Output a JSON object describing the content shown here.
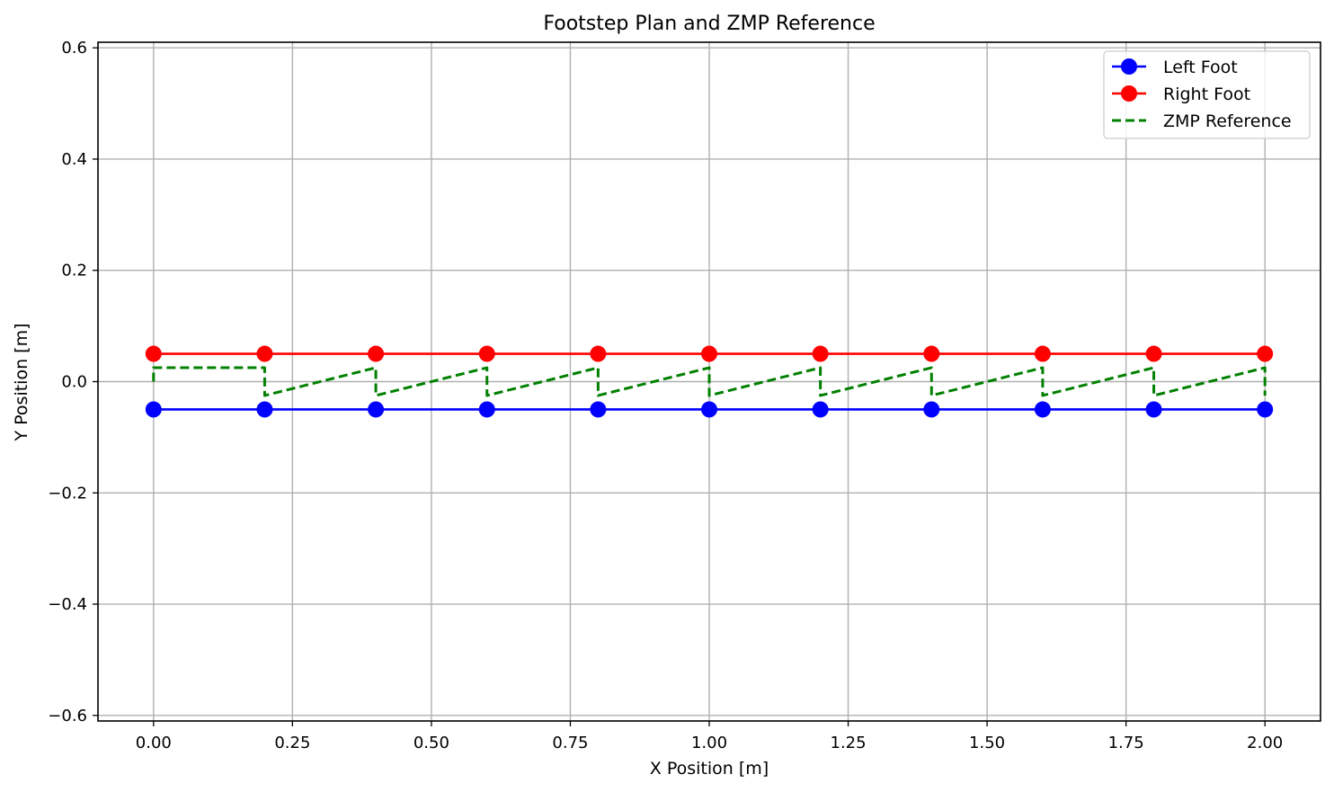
{
  "chart_data": {
    "type": "line",
    "title": "Footstep Plan and ZMP Reference",
    "xlabel": "X Position [m]",
    "ylabel": "Y Position [m]",
    "xlim": [
      -0.1,
      2.1
    ],
    "ylim": [
      -0.61,
      0.61
    ],
    "xticks": [
      0.0,
      0.25,
      0.5,
      0.75,
      1.0,
      1.25,
      1.5,
      1.75,
      2.0
    ],
    "xtick_labels": [
      "0.00",
      "0.25",
      "0.50",
      "0.75",
      "1.00",
      "1.25",
      "1.50",
      "1.75",
      "2.00"
    ],
    "yticks": [
      -0.6,
      -0.4,
      -0.2,
      0.0,
      0.2,
      0.4,
      0.6
    ],
    "ytick_labels": [
      "−0.6",
      "−0.4",
      "−0.2",
      "0.0",
      "0.2",
      "0.4",
      "0.6"
    ],
    "grid": true,
    "legend_position": "top-right",
    "series": [
      {
        "name": "Left Foot",
        "color": "#0000ff",
        "style": "solid-marker",
        "x": [
          0.0,
          0.2,
          0.4,
          0.6,
          0.8,
          1.0,
          1.2,
          1.4,
          1.6,
          1.8,
          2.0
        ],
        "y": [
          -0.05,
          -0.05,
          -0.05,
          -0.05,
          -0.05,
          -0.05,
          -0.05,
          -0.05,
          -0.05,
          -0.05,
          -0.05
        ]
      },
      {
        "name": "Right Foot",
        "color": "#ff0000",
        "style": "solid-marker",
        "x": [
          0.0,
          0.2,
          0.4,
          0.6,
          0.8,
          1.0,
          1.2,
          1.4,
          1.6,
          1.8,
          2.0
        ],
        "y": [
          0.05,
          0.05,
          0.05,
          0.05,
          0.05,
          0.05,
          0.05,
          0.05,
          0.05,
          0.05,
          0.05
        ]
      },
      {
        "name": "ZMP Reference",
        "color": "#008000",
        "style": "dashed",
        "x": [
          0.0,
          0.0,
          0.2,
          0.2,
          0.4,
          0.4,
          0.6,
          0.6,
          0.8,
          0.8,
          1.0,
          1.0,
          1.2,
          1.2,
          1.4,
          1.4,
          1.6,
          1.6,
          1.8,
          1.8,
          2.0,
          2.0
        ],
        "y": [
          0.0,
          0.025,
          0.025,
          -0.025,
          0.025,
          -0.025,
          0.025,
          -0.025,
          0.025,
          -0.025,
          0.025,
          -0.025,
          0.025,
          -0.025,
          0.025,
          -0.025,
          0.025,
          -0.025,
          0.025,
          -0.025,
          0.025,
          -0.025
        ]
      }
    ]
  }
}
